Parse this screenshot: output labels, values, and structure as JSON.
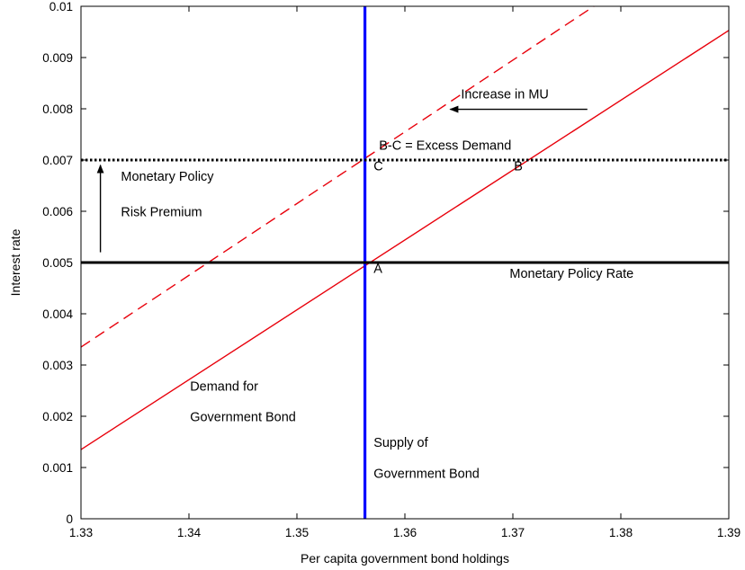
{
  "chart_data": {
    "type": "line",
    "xlabel": "Per capita government bond holdings",
    "ylabel": "Interest rate",
    "xlim": [
      1.33,
      1.39
    ],
    "ylim": [
      0,
      0.01
    ],
    "x_ticks": [
      "1.33",
      "1.34",
      "1.35",
      "1.36",
      "1.37",
      "1.38",
      "1.39"
    ],
    "y_ticks": [
      "0",
      "0.001",
      "0.002",
      "0.003",
      "0.004",
      "0.005",
      "0.006",
      "0.007",
      "0.008",
      "0.009",
      "0.01"
    ],
    "grid": false,
    "series": [
      {
        "key": "demand",
        "color": "#e8000b",
        "dash": "solid",
        "x": [
          1.33,
          1.39
        ],
        "y": [
          0.00135,
          0.00953
        ]
      },
      {
        "key": "demand_shifted",
        "color": "#e8000b",
        "dash": "dashed",
        "x": [
          1.33,
          1.3775
        ],
        "y": [
          0.00335,
          0.01
        ]
      },
      {
        "key": "supply",
        "color": "#0000ff",
        "dash": "solid",
        "x": [
          1.3563,
          1.3563
        ],
        "y": [
          0,
          0.01
        ]
      },
      {
        "key": "policy_rate",
        "color": "#000000",
        "dash": "solid",
        "x": [
          1.33,
          1.39
        ],
        "y": [
          0.005,
          0.005
        ]
      },
      {
        "key": "policy_rate_premium",
        "color": "#000000",
        "dash": "dotted",
        "x": [
          1.33,
          1.39
        ],
        "y": [
          0.007,
          0.007
        ]
      }
    ],
    "arrows": [
      {
        "key": "risk_premium_arrow",
        "from": [
          1.3318,
          0.0052
        ],
        "to": [
          1.3318,
          0.0069
        ]
      },
      {
        "key": "mu_arrow",
        "from": [
          1.3769,
          0.00799
        ],
        "to": [
          1.3642,
          0.00799
        ]
      }
    ],
    "annotations": [
      {
        "key": "label_A",
        "text": "A",
        "x": 1.3571,
        "y": 0.0048
      },
      {
        "key": "label_B",
        "text": "B",
        "x": 1.3701,
        "y": 0.0068
      },
      {
        "key": "label_C",
        "text": "C",
        "x": 1.3571,
        "y": 0.0068
      },
      {
        "key": "excess_demand",
        "text": "B-C = Excess Demand",
        "x": 1.3576,
        "y": 0.0072
      },
      {
        "key": "increase_mu",
        "text": "Increase in MU",
        "x": 1.3652,
        "y": 0.0082
      },
      {
        "key": "mp_risk_line1",
        "text": "Monetary Policy",
        "x": 1.3337,
        "y": 0.0066
      },
      {
        "key": "mp_risk_line2",
        "text": "Risk Premium",
        "x": 1.3337,
        "y": 0.0059
      },
      {
        "key": "mp_rate",
        "text": "Monetary Policy Rate",
        "x": 1.3697,
        "y": 0.0047
      },
      {
        "key": "demand_line1",
        "text": "Demand for",
        "x": 1.3401,
        "y": 0.0025
      },
      {
        "key": "demand_line2",
        "text": "Government Bond",
        "x": 1.3401,
        "y": 0.0019
      },
      {
        "key": "supply_line1",
        "text": "Supply of",
        "x": 1.3571,
        "y": 0.0014
      },
      {
        "key": "supply_line2",
        "text": "Government Bond",
        "x": 1.3571,
        "y": 0.0008
      }
    ]
  }
}
